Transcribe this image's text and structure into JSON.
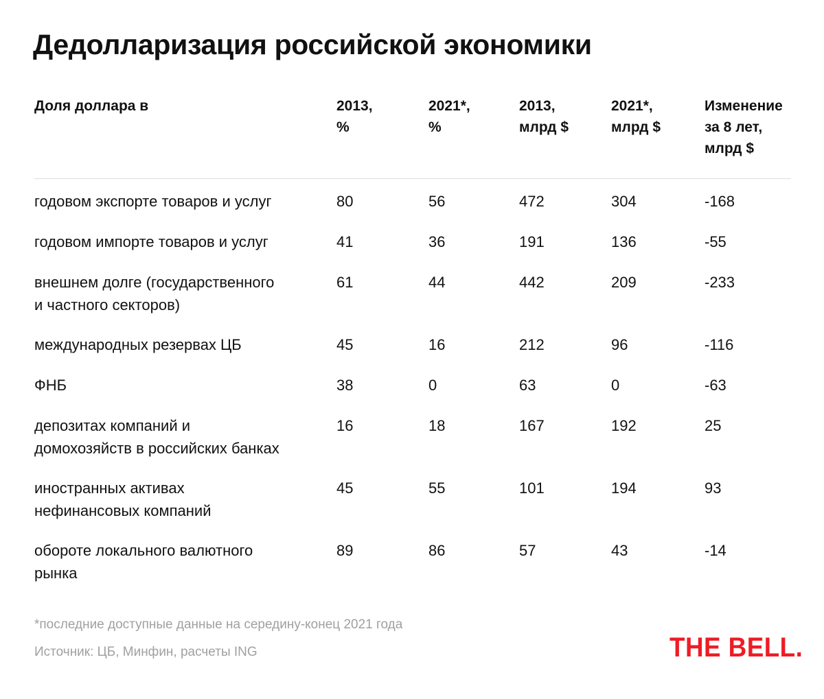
{
  "title": "Дедолларизация российской экономики",
  "chart_data": {
    "type": "table",
    "title": "Дедолларизация российской экономики",
    "columns": [
      "Доля доллара в",
      "2013,\n%",
      "2021*,\n%",
      "2013,\nмлрд $",
      "2021*,\nмлрд $",
      "Изменение\nза 8 лет,\nмлрд $"
    ],
    "rows": [
      {
        "label": "годовом экспорте товаров и услуг",
        "values": [
          "80",
          "56",
          "472",
          "304",
          "-168"
        ]
      },
      {
        "label": "годовом импорте товаров и услуг",
        "values": [
          "41",
          "36",
          "191",
          "136",
          "-55"
        ]
      },
      {
        "label": "внешнем долге (государственного\nи частного секторов)",
        "values": [
          "61",
          "44",
          "442",
          "209",
          "-233"
        ]
      },
      {
        "label": "международных резервах ЦБ",
        "values": [
          "45",
          "16",
          "212",
          "96",
          "-116"
        ]
      },
      {
        "label": "ФНБ",
        "values": [
          "38",
          "0",
          "63",
          "0",
          "-63"
        ]
      },
      {
        "label": "депозитах компаний и\nдомохозяйств в российских банках",
        "values": [
          "16",
          "18",
          "167",
          "192",
          "25"
        ]
      },
      {
        "label": "иностранных активах\nнефинансовых компаний",
        "values": [
          "45",
          "55",
          "101",
          "194",
          "93"
        ]
      },
      {
        "label": "обороте локального валютного\nрынка",
        "values": [
          "89",
          "86",
          "57",
          "43",
          "-14"
        ]
      }
    ]
  },
  "footnote": "*последние доступные данные на середину-конец 2021 года",
  "source": "Источник: ЦБ, Минфин, расчеты ING",
  "logo_text": "THE BELL.",
  "colors": {
    "text": "#111111",
    "muted": "#a0a0a0",
    "divider": "#dcdcdc",
    "brand": "#ee1c25"
  }
}
